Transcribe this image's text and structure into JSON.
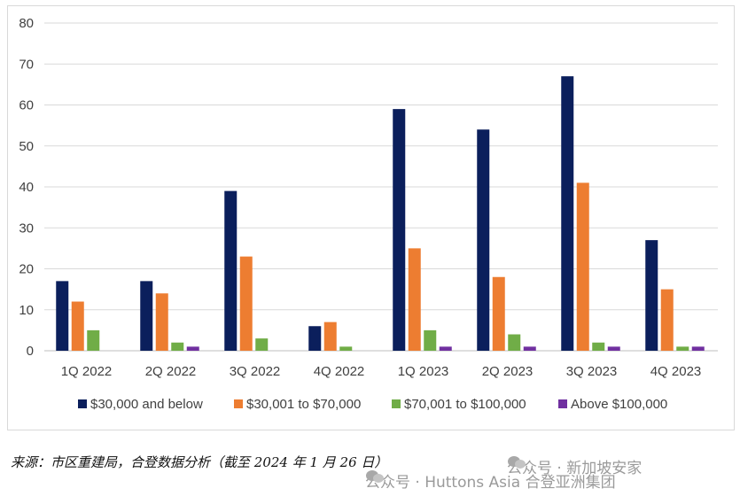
{
  "chart_data": {
    "type": "bar",
    "categories": [
      "1Q 2022",
      "2Q 2022",
      "3Q 2022",
      "4Q 2022",
      "1Q 2023",
      "2Q 2023",
      "3Q 2023",
      "4Q 2023"
    ],
    "series": [
      {
        "name": "$30,000 and below",
        "color": "#0b1f5c",
        "values": [
          17,
          17,
          39,
          6,
          59,
          54,
          67,
          27
        ]
      },
      {
        "name": "$30,001 to $70,000",
        "color": "#ed7d31",
        "values": [
          12,
          14,
          23,
          7,
          25,
          18,
          41,
          15
        ]
      },
      {
        "name": "$70,001 to $100,000",
        "color": "#70ad47",
        "values": [
          5,
          2,
          3,
          1,
          5,
          4,
          2,
          1
        ]
      },
      {
        "name": "Above $100,000",
        "color": "#7030a0",
        "values": [
          0,
          1,
          0,
          0,
          1,
          1,
          1,
          1
        ]
      }
    ],
    "ylim": [
      0,
      80
    ],
    "yticks": [
      0,
      10,
      20,
      30,
      40,
      50,
      60,
      70,
      80
    ],
    "grid": true,
    "legend_position": "bottom"
  },
  "footer": {
    "source": "来源：市区重建局，合登数据分析（截至 2024 年 1 月 26 日）",
    "watermark_1": "公众号 · 新加坡安家",
    "watermark_2": "公众号 · Huttons Asia 合登亚洲集团",
    "watermark_icon": "wechat-icon"
  }
}
